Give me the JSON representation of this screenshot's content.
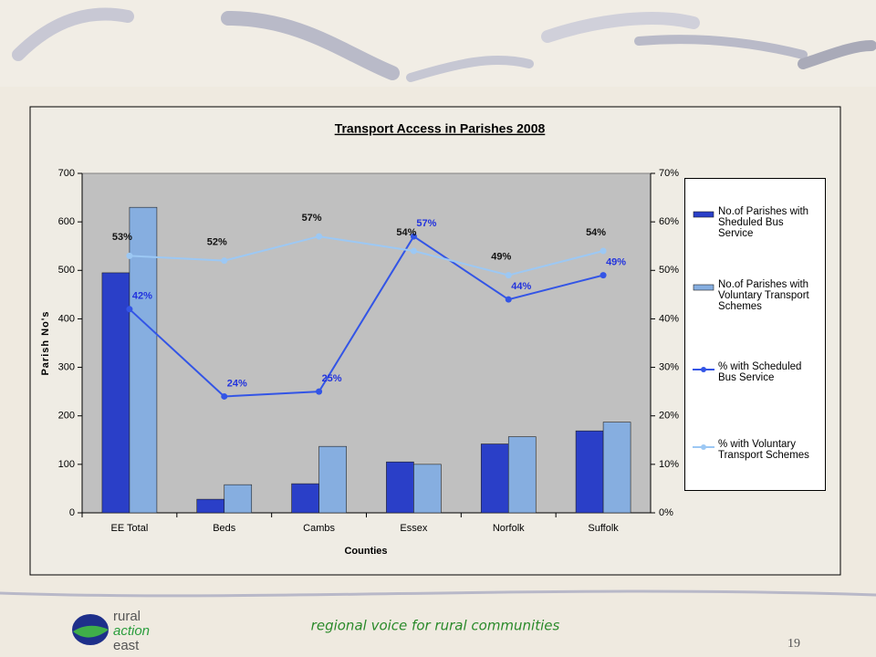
{
  "chart_data": {
    "type": "bar_line",
    "title": "Transport Access in Parishes 2008",
    "x_label": "Counties",
    "y_label": "Parish No's",
    "categories": [
      "EE Total",
      "Beds",
      "Cambs",
      "Essex",
      "Norfolk",
      "Suffolk"
    ],
    "series": [
      {
        "name": "No.of Parishes with Sheduled Bus Service",
        "type": "bar",
        "color": "#2a3fc8",
        "values": [
          495,
          28,
          60,
          105,
          142,
          169
        ]
      },
      {
        "name": "No.of Parishes with Voluntary Transport Schemes",
        "type": "bar",
        "color": "#86aee0",
        "values": [
          630,
          58,
          137,
          100,
          157,
          187
        ]
      },
      {
        "name": "% with Scheduled Bus Service",
        "type": "line",
        "axis": "y2",
        "color": "#3355e6",
        "values": [
          42,
          24,
          25,
          57,
          44,
          49
        ],
        "value_labels": [
          "42%",
          "24%",
          "25%",
          "57%",
          "44%",
          "49%"
        ]
      },
      {
        "name": "% with Voluntary Transport Schemes",
        "type": "line",
        "axis": "y2",
        "color": "#9cc8f4",
        "values": [
          53,
          52,
          57,
          54,
          49,
          54
        ],
        "value_labels": [
          "53%",
          "52%",
          "57%",
          "54%",
          "49%",
          "54%"
        ]
      }
    ],
    "ylim": [
      0,
      700
    ],
    "yticks": [
      0,
      100,
      200,
      300,
      400,
      500,
      600,
      700
    ],
    "y2lim": [
      0,
      70
    ],
    "y2ticks": [
      {
        "value": 0,
        "label": "0%"
      },
      {
        "value": 10,
        "label": "10%"
      },
      {
        "value": 20,
        "label": "20%"
      },
      {
        "value": 30,
        "label": "30%"
      },
      {
        "value": 40,
        "label": "40%"
      },
      {
        "value": 50,
        "label": "50%"
      },
      {
        "value": 60,
        "label": "60%"
      },
      {
        "value": 70,
        "label": "70%"
      }
    ],
    "legend": "right"
  },
  "footer": {
    "logo": [
      "rural",
      "action",
      "east"
    ],
    "tagline": "regional voice for rural communities",
    "page_number": "19"
  }
}
